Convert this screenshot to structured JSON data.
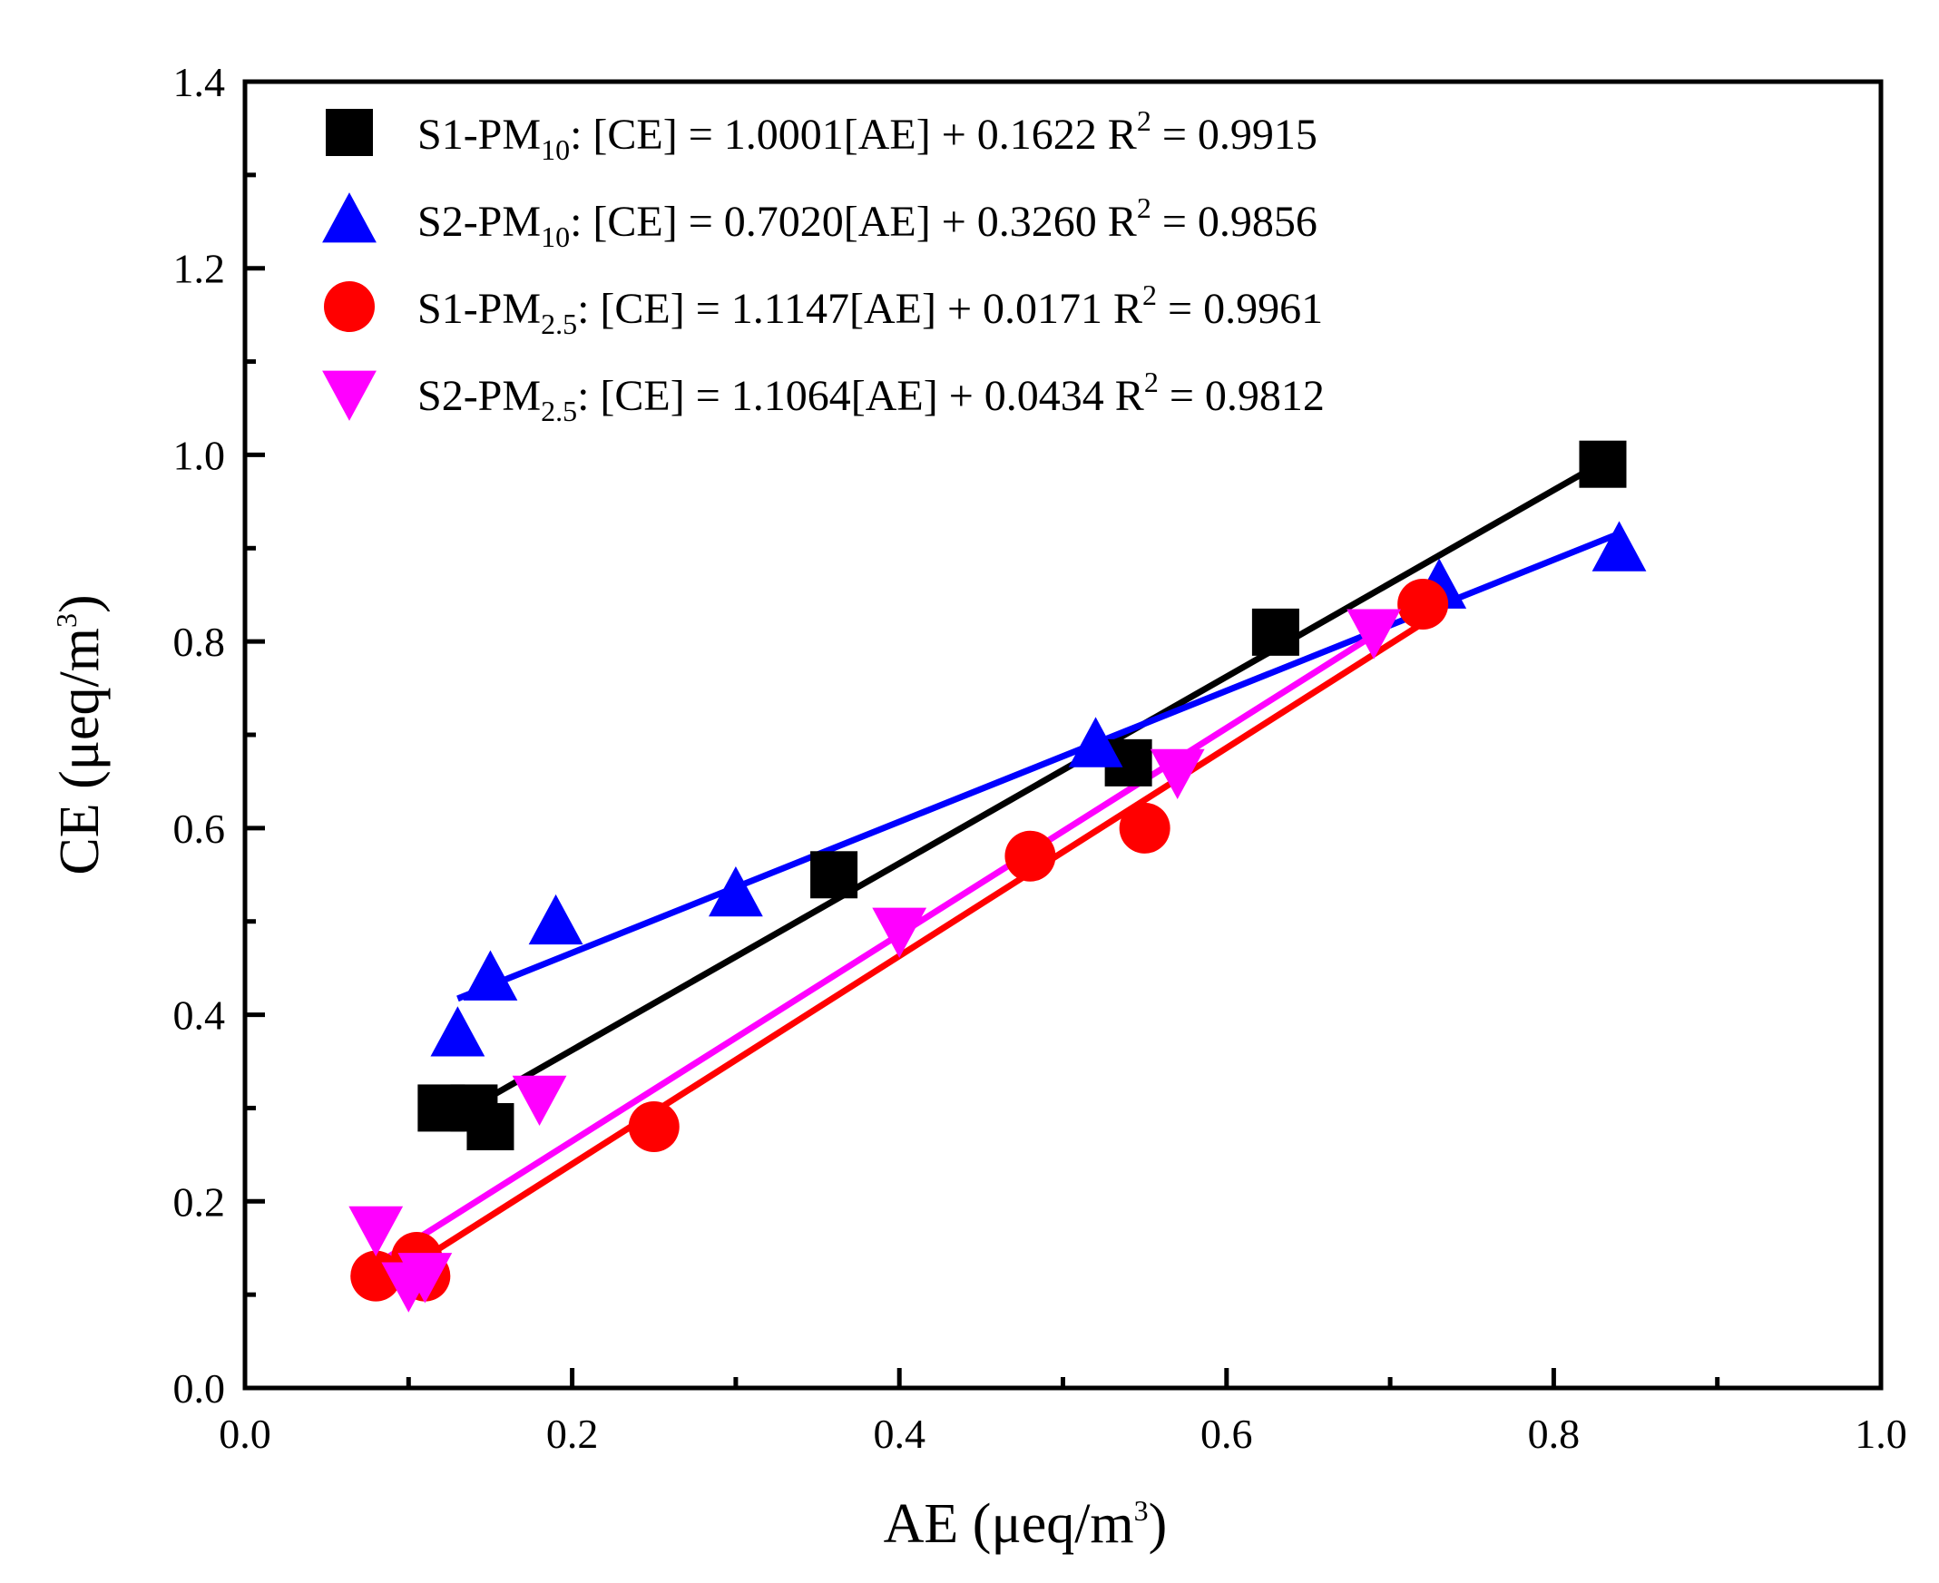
{
  "chart_data": {
    "type": "scatter",
    "xlabel": "AE (μeq/m",
    "xlabel_sup": "3",
    "xlabel_end": ")",
    "ylabel": "CE (μeq/m",
    "ylabel_sup": "3",
    "ylabel_end": ")",
    "xlim": [
      0.0,
      1.0
    ],
    "ylim": [
      0.0,
      1.4
    ],
    "x_ticks": [
      "0.0",
      "0.2",
      "0.4",
      "0.6",
      "0.8",
      "1.0"
    ],
    "y_ticks": [
      "0.0",
      "0.2",
      "0.4",
      "0.6",
      "0.8",
      "1.0",
      "1.2",
      "1.4"
    ],
    "legend_position": "top-left",
    "series": [
      {
        "name": "S1-PM10",
        "legend_prefix": "S1-PM",
        "legend_sub": "10",
        "legend_eq": ": [CE] = 1.0001[AE] + 0.1622 R",
        "legend_r2_sup": "2",
        "legend_r2": " = 0.9915",
        "marker": "square",
        "color": "#000000",
        "points": [
          [
            0.12,
            0.3
          ],
          [
            0.14,
            0.3
          ],
          [
            0.15,
            0.28
          ],
          [
            0.36,
            0.55
          ],
          [
            0.54,
            0.67
          ],
          [
            0.63,
            0.81
          ],
          [
            0.83,
            0.99
          ]
        ],
        "fit": {
          "slope": 1.0001,
          "intercept": 0.1622,
          "x_range": [
            0.12,
            0.83
          ]
        }
      },
      {
        "name": "S2-PM10",
        "legend_prefix": "S2-PM",
        "legend_sub": "10",
        "legend_eq": ": [CE] = 0.7020[AE] + 0.3260 R",
        "legend_r2_sup": "2",
        "legend_r2": " = 0.9856",
        "marker": "triangle-up",
        "color": "#0000ff",
        "points": [
          [
            0.13,
            0.38
          ],
          [
            0.15,
            0.44
          ],
          [
            0.19,
            0.5
          ],
          [
            0.3,
            0.53
          ],
          [
            0.52,
            0.69
          ],
          [
            0.73,
            0.86
          ],
          [
            0.84,
            0.9
          ]
        ],
        "fit": {
          "slope": 0.702,
          "intercept": 0.326,
          "x_range": [
            0.13,
            0.84
          ]
        }
      },
      {
        "name": "S1-PM2.5",
        "legend_prefix": "S1-PM",
        "legend_sub": "2.5",
        "legend_eq": ": [CE] = 1.1147[AE] + 0.0171 R",
        "legend_r2_sup": "2",
        "legend_r2": " = 0.9961",
        "marker": "circle",
        "color": "#ff0000",
        "points": [
          [
            0.08,
            0.12
          ],
          [
            0.105,
            0.14
          ],
          [
            0.11,
            0.12
          ],
          [
            0.25,
            0.28
          ],
          [
            0.48,
            0.57
          ],
          [
            0.55,
            0.6
          ],
          [
            0.72,
            0.84
          ]
        ],
        "fit": {
          "slope": 1.1147,
          "intercept": 0.0171,
          "x_range": [
            0.08,
            0.72
          ]
        }
      },
      {
        "name": "S2-PM2.5",
        "legend_prefix": "S2-PM",
        "legend_sub": "2.5",
        "legend_eq": ": [CE] = 1.1064[AE] + 0.0434 R",
        "legend_r2_sup": "2",
        "legend_r2": " = 0.9812",
        "marker": "triangle-down",
        "color": "#ff00ff",
        "points": [
          [
            0.08,
            0.17
          ],
          [
            0.1,
            0.11
          ],
          [
            0.11,
            0.12
          ],
          [
            0.18,
            0.31
          ],
          [
            0.4,
            0.49
          ],
          [
            0.57,
            0.66
          ],
          [
            0.69,
            0.81
          ]
        ],
        "fit": {
          "slope": 1.1064,
          "intercept": 0.0434,
          "x_range": [
            0.08,
            0.69
          ]
        }
      }
    ]
  }
}
